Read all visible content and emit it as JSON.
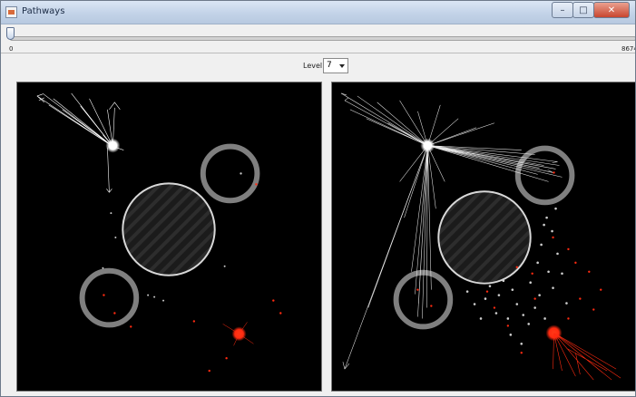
{
  "window": {
    "title": "Pathways",
    "icon": "pathways-app-icon",
    "controls": {
      "minimize": "–",
      "maximize": "□",
      "close": "✕"
    }
  },
  "slider": {
    "min_label": "0",
    "max_label": "8674",
    "value_fraction": 0.0
  },
  "level": {
    "label": "Level",
    "selected": "7"
  },
  "panels": [
    {
      "name": "left-visualization"
    },
    {
      "name": "right-visualization"
    }
  ],
  "colors": {
    "canvas": "#000000",
    "path": "#ffffff",
    "highlight": "#ff2a10",
    "ring": "#8a8a8a"
  }
}
